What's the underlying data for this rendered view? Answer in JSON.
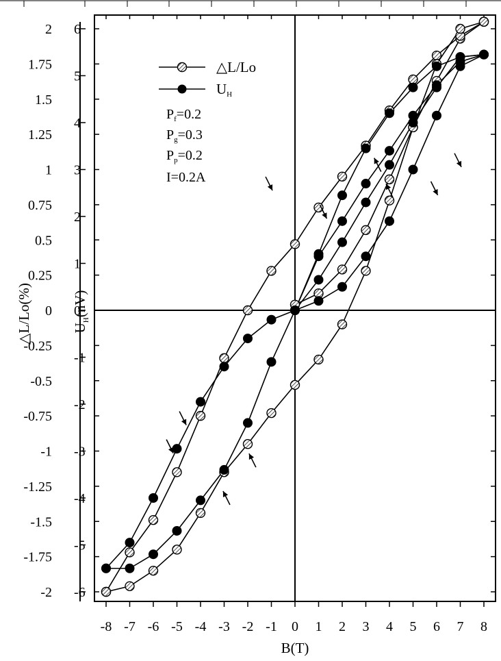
{
  "chart_data": {
    "type": "line",
    "xlabel": "B(T)",
    "ylabel_left": "△L/Lo(%)",
    "ylabel_right": "U",
    "ylabel_right_sub": "H",
    "ylabel_right_unit": "(nV)",
    "xlim": [
      -8,
      8
    ],
    "ylim_left": [
      -2,
      2
    ],
    "ylim_right": [
      -6,
      6
    ],
    "x_ticks": [
      "-8",
      "-7",
      "-6",
      "-5",
      "-4",
      "-3",
      "-2",
      "-1",
      "0",
      "1",
      "2",
      "3",
      "4",
      "5",
      "6",
      "7",
      "8"
    ],
    "y_left_ticks": [
      "2",
      "1.75",
      "1.5",
      "1.25",
      "1",
      "0.75",
      "0.5",
      "0.25",
      "0",
      "-0.25",
      "-0.5",
      "-0.75",
      "-1",
      "-1.25",
      "-1.5",
      "-1.75",
      "-2"
    ],
    "y_right_ticks": [
      "6",
      "5",
      "4",
      "3",
      "2",
      "1",
      "0",
      "-1",
      "-2",
      "-3",
      "-4",
      "-5",
      "-6"
    ],
    "grid": false,
    "legend": {
      "position": "top-left",
      "entries": [
        {
          "label": "△L/Lo",
          "marker": "open-circle-hatched"
        },
        {
          "label": "U",
          "sub": "H",
          "marker": "filled-circle"
        }
      ]
    },
    "params": [
      {
        "main": "P",
        "sub": "f",
        "rest": "=0.2"
      },
      {
        "main": "P",
        "sub": "g",
        "rest": "=0.3"
      },
      {
        "main": "P",
        "sub": "p",
        "rest": "=0.2"
      },
      {
        "main": "I=0.2A",
        "sub": "",
        "rest": ""
      }
    ],
    "series": [
      {
        "name": "△L/Lo",
        "axis": "left",
        "marker": "open",
        "branches": [
          {
            "x": [
              0,
              1,
              2,
              3,
              4,
              5,
              6,
              7,
              8
            ],
            "y": [
              0.04,
              0.12,
              0.29,
              0.57,
              0.93,
              1.3,
              1.63,
              1.93,
              2.05
            ]
          },
          {
            "x": [
              8,
              7,
              6,
              5,
              4,
              3,
              2,
              1,
              0,
              -1,
              -2,
              -3,
              -4,
              -5,
              -6,
              -7,
              -8
            ],
            "y": [
              2.05,
              1.95,
              1.81,
              1.64,
              1.42,
              1.17,
              0.95,
              0.73,
              0.47,
              0.28,
              0.0,
              -0.34,
              -0.75,
              -1.15,
              -1.49,
              -1.72,
              -2.0
            ]
          },
          {
            "x": [
              -8,
              -7,
              -6,
              -5,
              -4,
              -3,
              -2,
              -1,
              0,
              1,
              2,
              3,
              4,
              5,
              6,
              7,
              8
            ],
            "y": [
              -2.0,
              -1.96,
              -1.85,
              -1.7,
              -1.44,
              -1.15,
              -0.95,
              -0.73,
              -0.53,
              -0.35,
              -0.1,
              0.28,
              0.78,
              1.3,
              1.75,
              2.0,
              2.05
            ]
          }
        ]
      },
      {
        "name": "UH",
        "axis": "right",
        "marker": "filled",
        "branches": [
          {
            "x": [
              0,
              1,
              2,
              3,
              4,
              5,
              6,
              7,
              8
            ],
            "y": [
              0.0,
              0.65,
              1.45,
              2.3,
              3.1,
              4.0,
              4.75,
              5.4,
              5.45
            ]
          },
          {
            "x": [
              8,
              7,
              6,
              5,
              4,
              3,
              2,
              1,
              0
            ],
            "y": [
              5.45,
              5.3,
              4.8,
              4.15,
              3.4,
              2.7,
              1.9,
              1.15,
              0.0
            ]
          },
          {
            "x": [
              8,
              7,
              6,
              5,
              4,
              3,
              2,
              1,
              0,
              -1,
              -2,
              -3,
              -4,
              -5,
              -6,
              -7,
              -8
            ],
            "y": [
              5.45,
              5.4,
              5.2,
              4.75,
              4.2,
              3.45,
              2.45,
              1.2,
              0.0,
              -0.2,
              -0.6,
              -1.2,
              -1.95,
              -2.95,
              -4.0,
              -4.95,
              -5.5
            ]
          },
          {
            "x": [
              -8,
              -7,
              -6,
              -5,
              -4,
              -3,
              -2,
              -1,
              0,
              1,
              2,
              3,
              4,
              5,
              6,
              7,
              8
            ],
            "y": [
              -5.5,
              -5.5,
              -5.2,
              -4.7,
              -4.05,
              -3.4,
              -2.4,
              -1.1,
              0.0,
              0.2,
              0.5,
              1.15,
              1.9,
              3.0,
              4.15,
              5.2,
              5.45
            ]
          }
        ]
      }
    ],
    "arrows": [
      {
        "x": 1.2,
        "y_right": 2.1,
        "dir": "down"
      },
      {
        "x": 3.5,
        "y_right": 3.1,
        "dir": "up"
      },
      {
        "x": 4.0,
        "y_right": 2.55,
        "dir": "up"
      },
      {
        "x": 5.9,
        "y_right": 2.6,
        "dir": "down"
      },
      {
        "x": 6.9,
        "y_right": 3.2,
        "dir": "down"
      },
      {
        "x": -1.1,
        "y_right": 2.7,
        "dir": "down"
      },
      {
        "x": -4.75,
        "y_right": -2.3,
        "dir": "down"
      },
      {
        "x": -5.3,
        "y_right": -2.9,
        "dir": "down"
      },
      {
        "x": -2.9,
        "y_right": -4.0,
        "dir": "up"
      },
      {
        "x": -1.8,
        "y_right": -3.2,
        "dir": "up"
      }
    ]
  }
}
